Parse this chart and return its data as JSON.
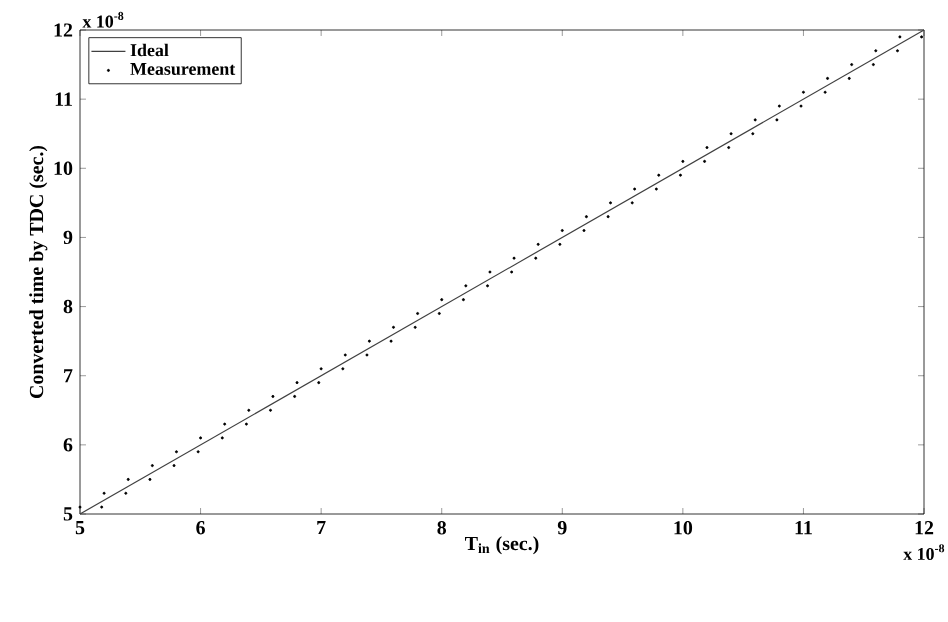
{
  "chart_data": {
    "type": "line",
    "xlabel": "T$_{in}$ (sec.)",
    "ylabel": "Converted time by TDC (sec.)",
    "annotations": [
      "x 10$^{-8}$",
      "x 10$^{-8}$"
    ],
    "xlim": [
      5,
      12
    ],
    "ylim": [
      5,
      12
    ],
    "xticks": [
      5,
      6,
      7,
      8,
      9,
      10,
      11,
      12
    ],
    "yticks": [
      5,
      6,
      7,
      8,
      9,
      10,
      11,
      12
    ],
    "grid": false,
    "legend": "top left",
    "series": [
      {
        "name": "Ideal",
        "color": "#404040",
        "marker": "none",
        "x": [
          5,
          12
        ],
        "values": [
          5,
          12
        ]
      },
      {
        "name": "Measurement",
        "type": "scatter",
        "color": "#000000",
        "marker": "circle",
        "x": [
          5.0,
          5.18,
          5.2,
          5.38,
          5.4,
          5.58,
          5.6,
          5.78,
          5.8,
          5.98,
          6.0,
          6.18,
          6.2,
          6.38,
          6.4,
          6.58,
          6.6,
          6.78,
          6.8,
          6.98,
          7.0,
          7.18,
          7.2,
          7.38,
          7.4,
          7.58,
          7.6,
          7.78,
          7.8,
          7.98,
          8.0,
          8.18,
          8.2,
          8.38,
          8.4,
          8.58,
          8.6,
          8.78,
          8.8,
          8.98,
          9.0,
          9.18,
          9.2,
          9.38,
          9.4,
          9.58,
          9.6,
          9.78,
          9.8,
          9.98,
          10.0,
          10.18,
          10.2,
          10.38,
          10.4,
          10.58,
          10.6,
          10.78,
          10.8,
          10.98,
          11.0,
          11.18,
          11.2,
          11.38,
          11.4,
          11.58,
          11.6,
          11.78,
          11.8,
          11.98
        ],
        "values": [
          5.1,
          5.1,
          5.3,
          5.3,
          5.5,
          5.5,
          5.7,
          5.7,
          5.9,
          5.9,
          6.1,
          6.1,
          6.3,
          6.3,
          6.5,
          6.5,
          6.7,
          6.7,
          6.9,
          6.9,
          7.1,
          7.1,
          7.3,
          7.3,
          7.5,
          7.5,
          7.7,
          7.7,
          7.9,
          7.9,
          8.1,
          8.1,
          8.3,
          8.3,
          8.5,
          8.5,
          8.7,
          8.7,
          8.9,
          8.9,
          9.1,
          9.1,
          9.3,
          9.3,
          9.5,
          9.5,
          9.7,
          9.7,
          9.9,
          9.9,
          10.1,
          10.1,
          10.3,
          10.3,
          10.5,
          10.5,
          10.7,
          10.7,
          10.9,
          10.9,
          11.1,
          11.1,
          11.3,
          11.3,
          11.5,
          11.5,
          11.7,
          11.7,
          11.9,
          11.9
        ]
      }
    ]
  }
}
